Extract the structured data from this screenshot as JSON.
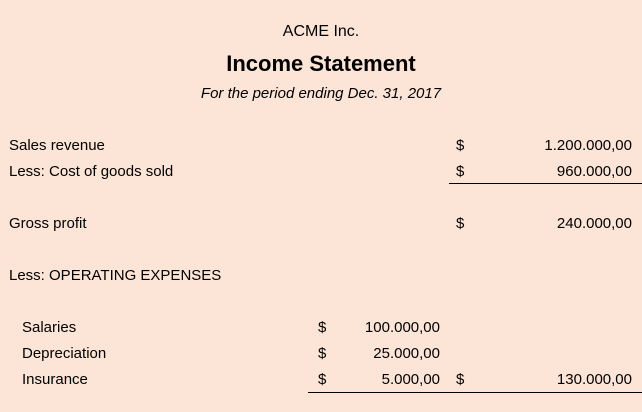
{
  "header": {
    "company": "ACME Inc.",
    "title": "Income Statement",
    "period": "For the period ending Dec. 31, 2017"
  },
  "rows": {
    "sales_revenue": {
      "label": "Sales revenue",
      "currency": "$",
      "amount": "1.200.000,00"
    },
    "cogs": {
      "label": "Less: Cost of goods sold",
      "currency": "$",
      "amount": "960.000,00"
    },
    "gross_profit": {
      "label": "Gross profit",
      "currency": "$",
      "amount": "240.000,00"
    },
    "opex_header": {
      "label": "Less: OPERATING EXPENSES"
    },
    "salaries": {
      "label": "Salaries",
      "currency": "$",
      "amount": "100.000,00"
    },
    "depreciation": {
      "label": "Depreciation",
      "currency": "$",
      "amount": "25.000,00"
    },
    "insurance": {
      "label": "Insurance",
      "currency": "$",
      "amount": "5.000,00"
    },
    "opex_total": {
      "currency": "$",
      "amount": "130.000,00"
    }
  },
  "colors": {
    "background": "#FCE4D6"
  }
}
